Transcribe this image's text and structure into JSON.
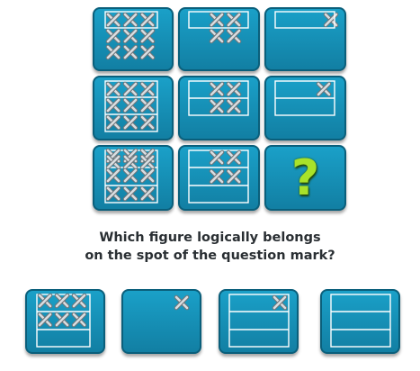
{
  "puzzle": {
    "question_mark": "?",
    "question_line1": "Which figure logically belongs",
    "question_line2": "on the spot of the question mark?"
  },
  "colors": {
    "tile_fill": "#1590b6",
    "tile_border": "#0a5f7b",
    "line": "#ffffff",
    "cross": "#d8dde0",
    "question_mark": "#a8e22a"
  },
  "icons": {
    "cross": "x-cross-icon",
    "question": "question-mark-icon"
  }
}
